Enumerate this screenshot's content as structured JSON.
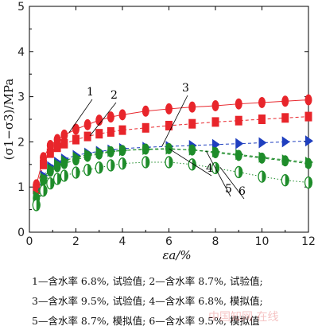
{
  "chart_data": {
    "type": "scatter",
    "xlabel": "εa/%",
    "ylabel": "(σ1−σ3)/MPa",
    "xlim": [
      0,
      12
    ],
    "ylim": [
      0,
      5
    ],
    "xticks": [
      "0",
      "2",
      "4",
      "6",
      "8",
      "10",
      "12"
    ],
    "yticks": [
      "0",
      "1",
      "2",
      "3",
      "4",
      "5"
    ],
    "grid": false,
    "curve_labels": [
      "1",
      "2",
      "3",
      "4",
      "5",
      "6"
    ],
    "series": [
      {
        "id": "1",
        "color": "#e8252b",
        "marker": "ellipse",
        "line": "solid",
        "x": [
          0.3,
          0.6,
          0.9,
          1.2,
          1.5,
          2,
          2.5,
          3,
          3.5,
          4,
          5,
          6,
          7,
          8,
          9,
          10,
          11,
          12
        ],
        "y": [
          1.05,
          1.65,
          1.92,
          2.05,
          2.15,
          2.28,
          2.38,
          2.48,
          2.55,
          2.6,
          2.68,
          2.73,
          2.77,
          2.8,
          2.84,
          2.87,
          2.9,
          2.93
        ]
      },
      {
        "id": "2",
        "color": "#e8252b",
        "marker": "square",
        "line": "dashed",
        "x": [
          0.3,
          0.6,
          0.9,
          1.2,
          1.5,
          2,
          2.5,
          3,
          3.5,
          4,
          5,
          6,
          7,
          8,
          9,
          10,
          11,
          12
        ],
        "y": [
          0.95,
          1.5,
          1.75,
          1.88,
          1.96,
          2.05,
          2.12,
          2.18,
          2.22,
          2.26,
          2.31,
          2.36,
          2.4,
          2.44,
          2.47,
          2.5,
          2.53,
          2.56
        ]
      },
      {
        "id": "3",
        "color": "#1f3fbf",
        "marker": "triangle-right",
        "line": "dashed",
        "x": [
          0.3,
          0.6,
          0.9,
          1.2,
          1.5,
          2,
          2.5,
          3,
          3.5,
          4,
          5,
          6,
          7,
          8,
          9,
          10,
          11,
          12
        ],
        "y": [
          0.8,
          1.25,
          1.45,
          1.55,
          1.62,
          1.7,
          1.75,
          1.79,
          1.82,
          1.85,
          1.88,
          1.9,
          1.92,
          1.94,
          1.96,
          1.98,
          2.0,
          2.02
        ]
      },
      {
        "id": "4",
        "color": "#1e8c2a",
        "marker": "ellipse",
        "line": "dashed",
        "x": [
          0.3,
          0.6,
          0.9,
          1.2,
          1.5,
          2,
          2.5,
          3,
          3.5,
          4,
          5,
          6,
          7,
          8,
          9,
          10,
          11,
          12
        ],
        "y": [
          0.75,
          1.15,
          1.35,
          1.45,
          1.52,
          1.6,
          1.68,
          1.73,
          1.78,
          1.81,
          1.84,
          1.85,
          1.82,
          1.76,
          1.7,
          1.64,
          1.58,
          1.52
        ]
      },
      {
        "id": "5",
        "color": "#1e8c2a",
        "marker": "triangle-right",
        "line": "dashed",
        "x": [
          0.3,
          0.6,
          0.9,
          1.2,
          1.5,
          2,
          2.5,
          3,
          3.5,
          4,
          5,
          6,
          7,
          8,
          9,
          10,
          11,
          12
        ],
        "y": [
          0.8,
          1.2,
          1.4,
          1.5,
          1.58,
          1.66,
          1.72,
          1.76,
          1.79,
          1.81,
          1.83,
          1.84,
          1.82,
          1.78,
          1.72,
          1.66,
          1.6,
          1.55
        ]
      },
      {
        "id": "6",
        "color": "#1e8c2a",
        "marker": "ellipse-half",
        "line": "dotted",
        "x": [
          0.3,
          0.6,
          0.9,
          1.2,
          1.5,
          2,
          2.5,
          3,
          3.5,
          4,
          5,
          6,
          7,
          8,
          9,
          10,
          11,
          12
        ],
        "y": [
          0.6,
          0.92,
          1.08,
          1.18,
          1.25,
          1.32,
          1.38,
          1.43,
          1.48,
          1.52,
          1.55,
          1.55,
          1.5,
          1.42,
          1.33,
          1.23,
          1.15,
          1.1
        ]
      }
    ]
  },
  "legend_lines": [
    "1—含水率 6.8%, 试验值; 2—含水率 8.7%, 试验值;",
    "3—含水率 9.5%, 试验值; 4—含水率 6.8%, 模拟值;",
    "5—含水率 8.7%, 模拟值; 6—含水率 9.5%, 模拟值"
  ],
  "watermark": "中国知网 在线"
}
